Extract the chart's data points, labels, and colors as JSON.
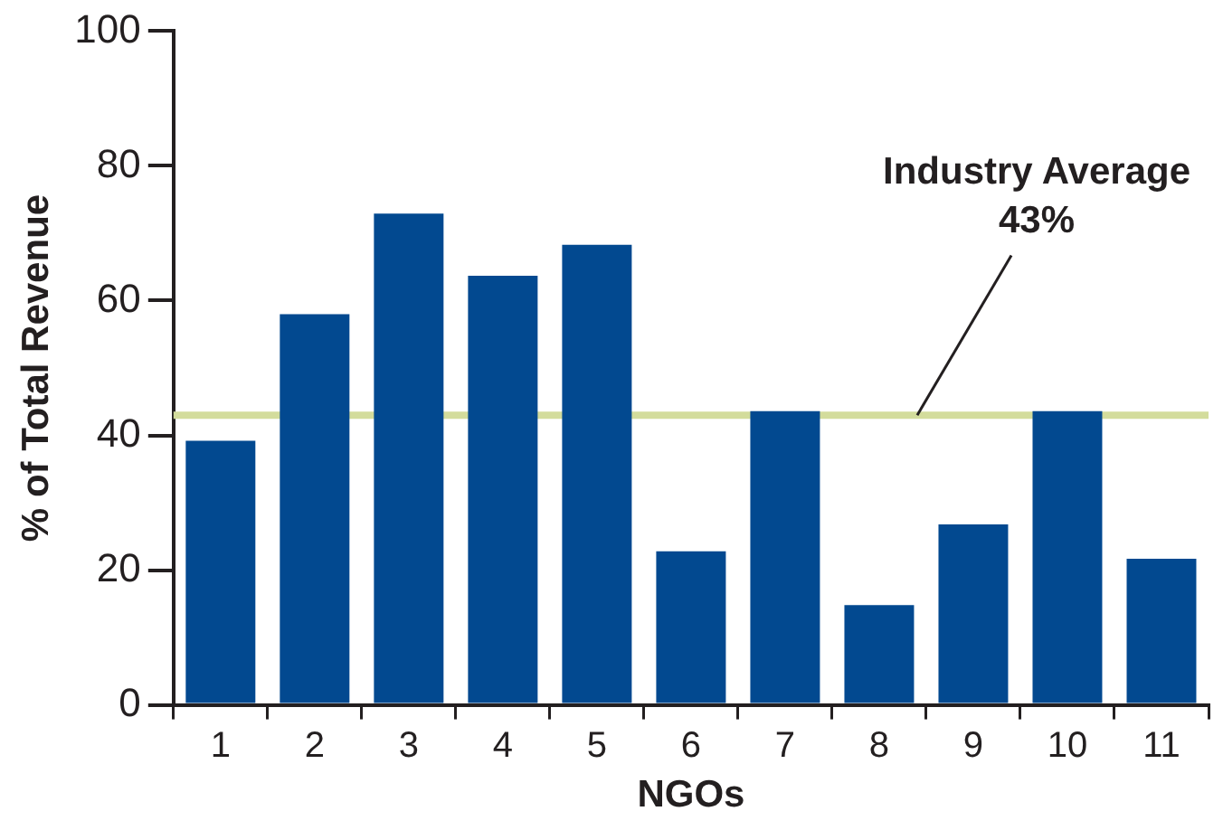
{
  "chart_data": {
    "type": "bar",
    "xlabel": "NGOs",
    "ylabel": "% of Total Revenue",
    "categories": [
      "1",
      "2",
      "3",
      "4",
      "5",
      "6",
      "7",
      "8",
      "9",
      "10",
      "11"
    ],
    "values": [
      39.2,
      58,
      72.9,
      63.7,
      68.3,
      22.8,
      43.6,
      14.8,
      26.8,
      43.6,
      21.7
    ],
    "color": "#024990",
    "ylim": [
      0,
      100
    ],
    "yticks": [
      0,
      20,
      40,
      60,
      80,
      100
    ],
    "grid": false,
    "ref_lines": [
      {
        "axis": "y",
        "value": 43,
        "label": "Industry Average\n43%",
        "color": "#d3dc9c"
      }
    ]
  }
}
